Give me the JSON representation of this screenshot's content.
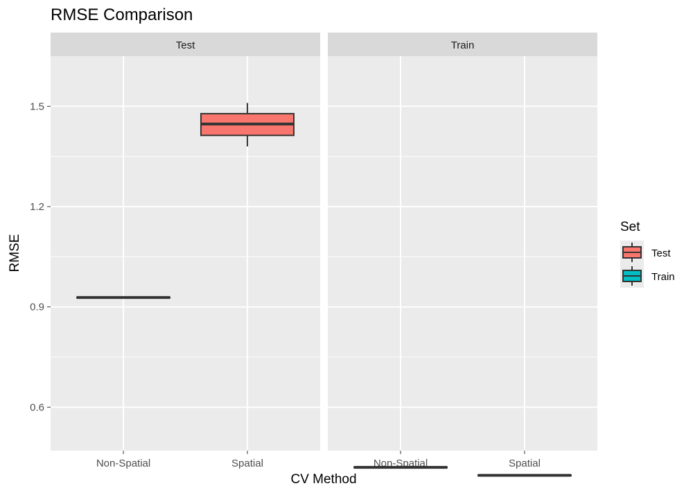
{
  "chart_data": {
    "type": "box",
    "title": "RMSE Comparison",
    "xlabel": "CV Method",
    "ylabel": "RMSE",
    "ylim": [
      0.47,
      1.65
    ],
    "yticks": [
      0.6,
      0.9,
      1.2,
      1.5
    ],
    "categories": [
      "Non-Spatial",
      "Spatial"
    ],
    "grid": true,
    "facets": [
      {
        "name": "Test",
        "boxes": [
          {
            "category": "Non-Spatial",
            "set": "Test",
            "min": 0.927,
            "q1": 0.927,
            "median": 0.928,
            "q3": 0.929,
            "max": 0.93
          },
          {
            "category": "Spatial",
            "set": "Test",
            "min": 1.38,
            "q1": 1.413,
            "median": 1.447,
            "q3": 1.478,
            "max": 1.51
          }
        ]
      },
      {
        "name": "Train",
        "boxes": [
          {
            "category": "Non-Spatial",
            "set": "Train",
            "min": 0.417,
            "q1": 0.419,
            "median": 0.42,
            "q3": 0.421,
            "max": 0.424
          },
          {
            "category": "Spatial",
            "set": "Train",
            "min": 0.395,
            "q1": 0.395,
            "median": 0.396,
            "q3": 0.397,
            "max": 0.397
          }
        ]
      }
    ],
    "legend": {
      "title": "Set",
      "position": "right",
      "items": [
        {
          "label": "Test",
          "color": "#F8766D"
        },
        {
          "label": "Train",
          "color": "#00BFC4"
        }
      ]
    },
    "colors": {
      "panel_bg": "#EBEBEB",
      "strip_bg": "#D9D9D9",
      "grid": "#FFFFFF",
      "box_line": "#333333"
    }
  }
}
